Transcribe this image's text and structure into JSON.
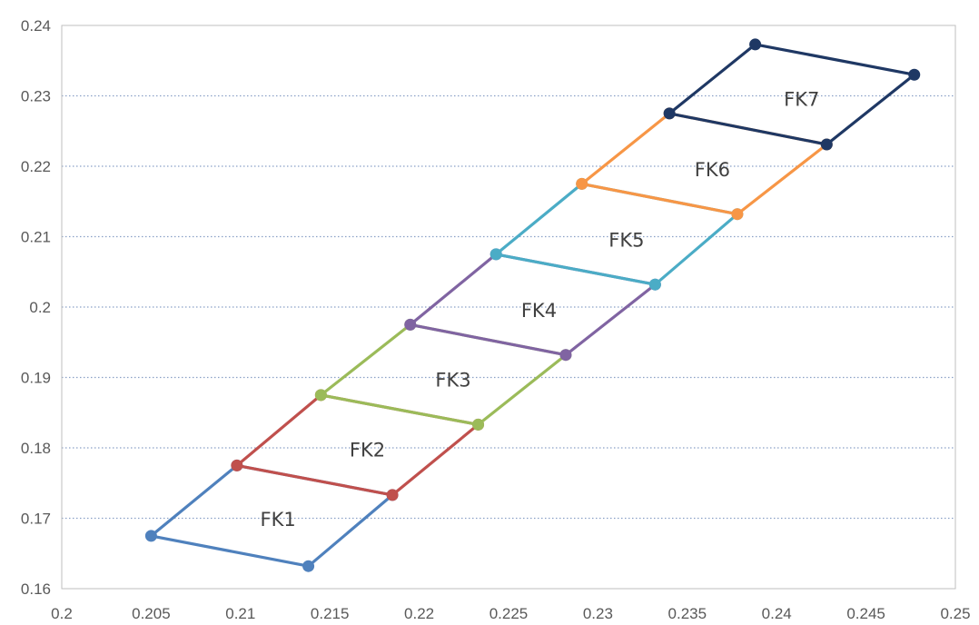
{
  "chart_data": {
    "type": "scatter",
    "title": "",
    "xlabel": "",
    "ylabel": "",
    "xlim": [
      0.2,
      0.25
    ],
    "ylim": [
      0.16,
      0.24
    ],
    "x_ticks": [
      "0.2",
      "0.205",
      "0.21",
      "0.215",
      "0.22",
      "0.225",
      "0.23",
      "0.235",
      "0.24",
      "0.245",
      "0.25"
    ],
    "y_ticks": [
      "0.16",
      "0.17",
      "0.18",
      "0.19",
      "0.2",
      "0.21",
      "0.22",
      "0.23",
      "0.24"
    ],
    "grid": "horizontal dotted",
    "legend": "none",
    "series": [
      {
        "name": "FK1",
        "color": "#4f81bd",
        "points": [
          [
            0.205,
            0.1675
          ],
          [
            0.2098,
            0.1775
          ],
          [
            0.2185,
            0.1733
          ],
          [
            0.2138,
            0.1632
          ],
          [
            0.205,
            0.1675
          ]
        ]
      },
      {
        "name": "FK2",
        "color": "#c0504d",
        "points": [
          [
            0.2098,
            0.1775
          ],
          [
            0.2145,
            0.1875
          ],
          [
            0.2233,
            0.1833
          ],
          [
            0.2185,
            0.1733
          ],
          [
            0.2098,
            0.1775
          ]
        ]
      },
      {
        "name": "FK3",
        "color": "#9bbb59",
        "points": [
          [
            0.2145,
            0.1875
          ],
          [
            0.2195,
            0.1975
          ],
          [
            0.2282,
            0.1932
          ],
          [
            0.2233,
            0.1833
          ],
          [
            0.2145,
            0.1875
          ]
        ]
      },
      {
        "name": "FK4",
        "color": "#8064a2",
        "points": [
          [
            0.2195,
            0.1975
          ],
          [
            0.2243,
            0.2075
          ],
          [
            0.2332,
            0.2032
          ],
          [
            0.2282,
            0.1932
          ],
          [
            0.2195,
            0.1975
          ]
        ]
      },
      {
        "name": "FK5",
        "color": "#4bacc6",
        "points": [
          [
            0.2243,
            0.2075
          ],
          [
            0.2291,
            0.2175
          ],
          [
            0.2378,
            0.2132
          ],
          [
            0.2332,
            0.2032
          ],
          [
            0.2243,
            0.2075
          ]
        ]
      },
      {
        "name": "FK6",
        "color": "#f79646",
        "points": [
          [
            0.2291,
            0.2175
          ],
          [
            0.234,
            0.2275
          ],
          [
            0.2428,
            0.2231
          ],
          [
            0.2378,
            0.2132
          ],
          [
            0.2291,
            0.2175
          ]
        ]
      },
      {
        "name": "FK7",
        "color": "#1f3864",
        "points": [
          [
            0.234,
            0.2275
          ],
          [
            0.2388,
            0.2373
          ],
          [
            0.2477,
            0.233
          ],
          [
            0.2428,
            0.2231
          ],
          [
            0.234,
            0.2275
          ]
        ]
      }
    ],
    "annotations": [
      {
        "text": "FK1",
        "x": 0.2121,
        "y": 0.1689
      },
      {
        "text": "FK2",
        "x": 0.2171,
        "y": 0.1788
      },
      {
        "text": "FK3",
        "x": 0.2219,
        "y": 0.1887
      },
      {
        "text": "FK4",
        "x": 0.2267,
        "y": 0.1986
      },
      {
        "text": "FK5",
        "x": 0.2316,
        "y": 0.2086
      },
      {
        "text": "FK6",
        "x": 0.2364,
        "y": 0.2186
      },
      {
        "text": "FK7",
        "x": 0.2414,
        "y": 0.2286
      }
    ]
  }
}
